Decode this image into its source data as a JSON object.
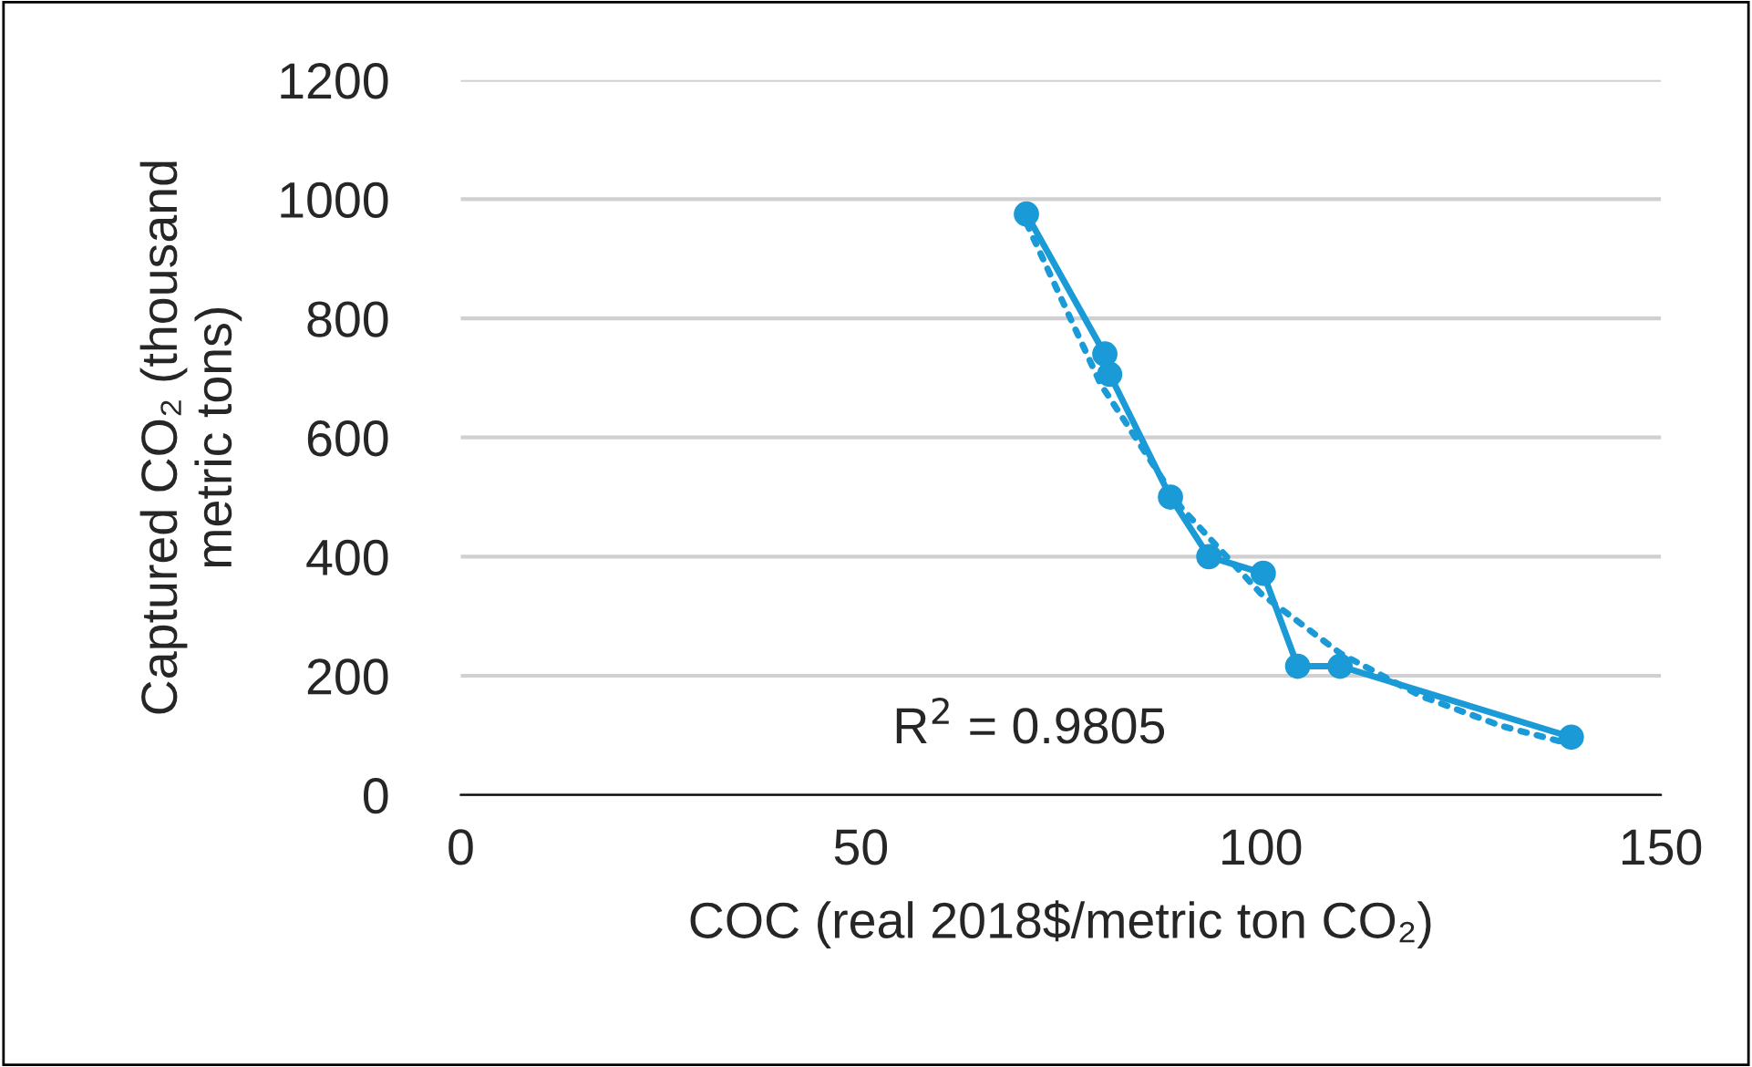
{
  "chart_data": {
    "type": "line",
    "xlabel": "COC (real 2018$/metric ton CO₂)",
    "ylabel": "Captured CO₂ (thousand\nmetric tons)",
    "xlim": [
      0,
      150
    ],
    "xticks": [
      0,
      50,
      100,
      150
    ],
    "ylim": [
      0,
      1200
    ],
    "yticks": [
      0,
      200,
      400,
      600,
      800,
      1000,
      1200
    ],
    "grid": "y",
    "series": [
      {
        "color": "#1a9ad6",
        "marker": "circle",
        "line_style": "solid",
        "x": [
          70.7,
          80.5,
          81.1,
          88.7,
          93.5,
          100.3,
          104.6,
          109.9,
          138.8
        ],
        "values": [
          975,
          740,
          706,
          500,
          400,
          372,
          216,
          216,
          97
        ]
      },
      {
        "color": "#1a9ad6",
        "marker": "none",
        "line_style": "dotted",
        "x": [
          70.7,
          80,
          90,
          100,
          110,
          120,
          130,
          138.8
        ],
        "values": [
          960,
          689,
          483,
          338,
          237,
          166,
          116,
          85
        ]
      }
    ],
    "annotations": [
      "R$^{2}$ = 0.9805"
    ]
  }
}
